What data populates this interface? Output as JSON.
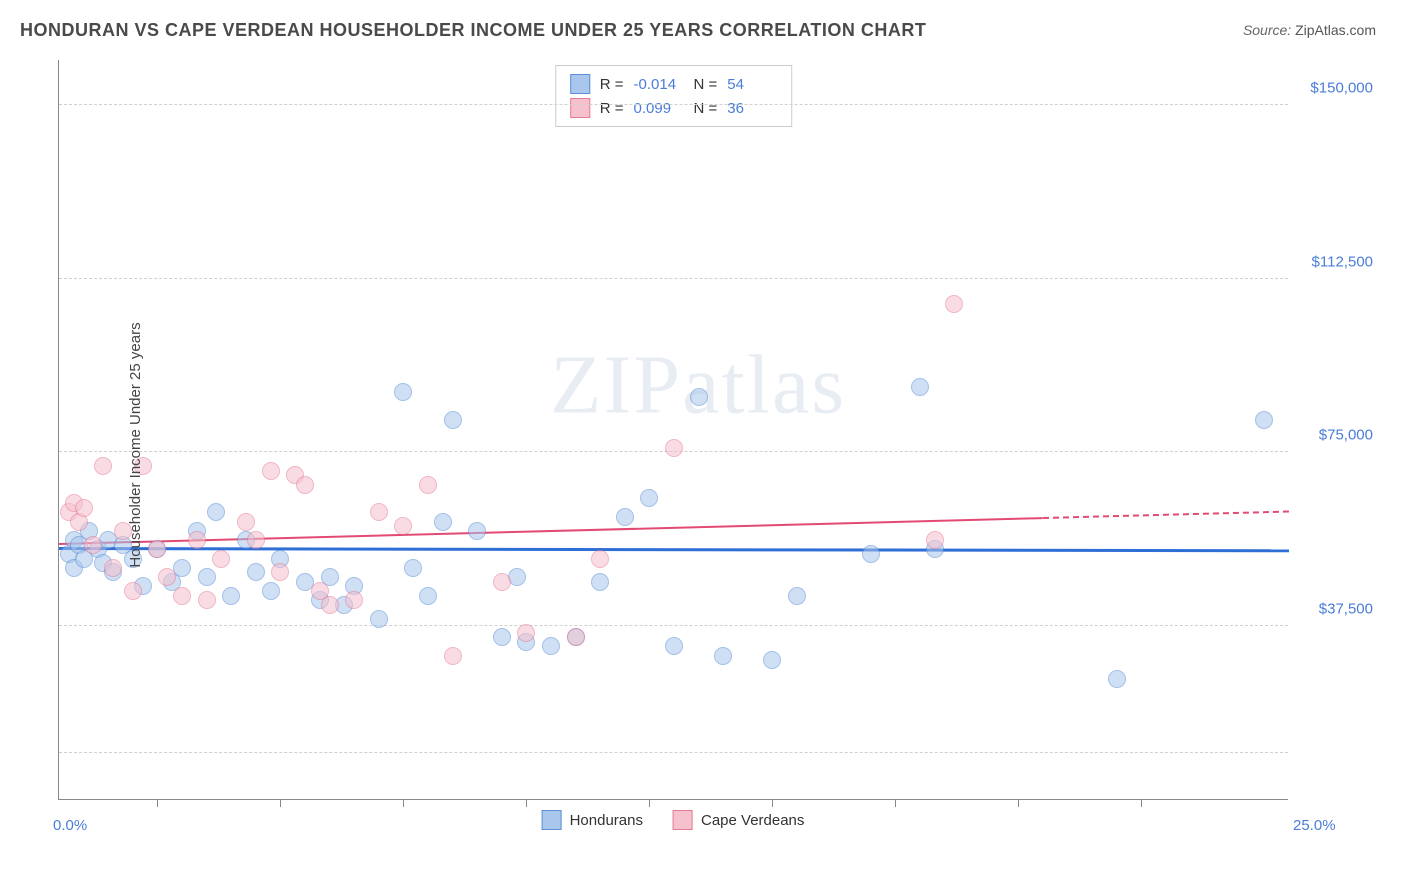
{
  "title": "HONDURAN VS CAPE VERDEAN HOUSEHOLDER INCOME UNDER 25 YEARS CORRELATION CHART",
  "source_label": "Source:",
  "source_value": "ZipAtlas.com",
  "watermark": "ZIPatlas",
  "chart": {
    "type": "scatter",
    "ylabel": "Householder Income Under 25 years",
    "xlim": [
      0,
      25
    ],
    "ylim": [
      0,
      160000
    ],
    "x_min_label": "0.0%",
    "x_max_label": "25.0%",
    "ytick_values": [
      37500,
      75000,
      112500,
      150000
    ],
    "ytick_labels": [
      "$37,500",
      "$75,000",
      "$112,500",
      "$150,000"
    ],
    "ytick_gridline_values": [
      10000,
      37500,
      75000,
      112500,
      150000
    ],
    "xtick_positions": [
      2.0,
      4.5,
      7.0,
      9.5,
      12.0,
      14.5,
      17.0,
      19.5,
      22.0
    ],
    "background_color": "#ffffff",
    "grid_color": "#d0d0d0",
    "axis_color": "#888888",
    "marker_radius": 9,
    "marker_opacity": 0.55,
    "series": [
      {
        "name": "Hondurans",
        "color_fill": "#a9c6ec",
        "color_stroke": "#5b8fd6",
        "r_value": "-0.014",
        "n_value": "54",
        "trend": {
          "x1": 0,
          "y1": 54000,
          "x2": 25,
          "y2": 53500,
          "color": "#2e6fd6",
          "width": 2.5,
          "solid_until_x": 25
        },
        "points": [
          {
            "x": 0.2,
            "y": 53000
          },
          {
            "x": 0.3,
            "y": 56000
          },
          {
            "x": 0.3,
            "y": 50000
          },
          {
            "x": 0.4,
            "y": 55000
          },
          {
            "x": 0.5,
            "y": 52000
          },
          {
            "x": 0.6,
            "y": 58000
          },
          {
            "x": 0.8,
            "y": 54000
          },
          {
            "x": 0.9,
            "y": 51000
          },
          {
            "x": 1.0,
            "y": 56000
          },
          {
            "x": 1.1,
            "y": 49000
          },
          {
            "x": 1.3,
            "y": 55000
          },
          {
            "x": 1.5,
            "y": 52000
          },
          {
            "x": 1.7,
            "y": 46000
          },
          {
            "x": 2.0,
            "y": 54000
          },
          {
            "x": 2.3,
            "y": 47000
          },
          {
            "x": 2.5,
            "y": 50000
          },
          {
            "x": 2.8,
            "y": 58000
          },
          {
            "x": 3.0,
            "y": 48000
          },
          {
            "x": 3.2,
            "y": 62000
          },
          {
            "x": 3.5,
            "y": 44000
          },
          {
            "x": 3.8,
            "y": 56000
          },
          {
            "x": 4.0,
            "y": 49000
          },
          {
            "x": 4.3,
            "y": 45000
          },
          {
            "x": 4.5,
            "y": 52000
          },
          {
            "x": 5.0,
            "y": 47000
          },
          {
            "x": 5.3,
            "y": 43000
          },
          {
            "x": 5.5,
            "y": 48000
          },
          {
            "x": 5.8,
            "y": 42000
          },
          {
            "x": 6.0,
            "y": 46000
          },
          {
            "x": 6.5,
            "y": 39000
          },
          {
            "x": 7.0,
            "y": 88000
          },
          {
            "x": 7.2,
            "y": 50000
          },
          {
            "x": 7.5,
            "y": 44000
          },
          {
            "x": 7.8,
            "y": 60000
          },
          {
            "x": 8.0,
            "y": 82000
          },
          {
            "x": 8.5,
            "y": 58000
          },
          {
            "x": 9.0,
            "y": 35000
          },
          {
            "x": 9.3,
            "y": 48000
          },
          {
            "x": 9.5,
            "y": 34000
          },
          {
            "x": 10.0,
            "y": 33000
          },
          {
            "x": 10.5,
            "y": 35000
          },
          {
            "x": 11.0,
            "y": 47000
          },
          {
            "x": 11.5,
            "y": 61000
          },
          {
            "x": 12.0,
            "y": 65000
          },
          {
            "x": 12.5,
            "y": 33000
          },
          {
            "x": 13.0,
            "y": 87000
          },
          {
            "x": 13.5,
            "y": 31000
          },
          {
            "x": 14.5,
            "y": 30000
          },
          {
            "x": 15.0,
            "y": 44000
          },
          {
            "x": 16.5,
            "y": 53000
          },
          {
            "x": 17.5,
            "y": 89000
          },
          {
            "x": 17.8,
            "y": 54000
          },
          {
            "x": 21.5,
            "y": 26000
          },
          {
            "x": 24.5,
            "y": 82000
          }
        ]
      },
      {
        "name": "Cape Verdeans",
        "color_fill": "#f5c1cd",
        "color_stroke": "#e67b97",
        "r_value": "0.099",
        "n_value": "36",
        "trend": {
          "x1": 0,
          "y1": 55000,
          "x2": 25,
          "y2": 62000,
          "color": "#e24a73",
          "width": 2,
          "solid_until_x": 20
        },
        "points": [
          {
            "x": 0.2,
            "y": 62000
          },
          {
            "x": 0.3,
            "y": 64000
          },
          {
            "x": 0.4,
            "y": 60000
          },
          {
            "x": 0.5,
            "y": 63000
          },
          {
            "x": 0.7,
            "y": 55000
          },
          {
            "x": 0.9,
            "y": 72000
          },
          {
            "x": 1.1,
            "y": 50000
          },
          {
            "x": 1.3,
            "y": 58000
          },
          {
            "x": 1.5,
            "y": 45000
          },
          {
            "x": 1.7,
            "y": 72000
          },
          {
            "x": 2.0,
            "y": 54000
          },
          {
            "x": 2.2,
            "y": 48000
          },
          {
            "x": 2.5,
            "y": 44000
          },
          {
            "x": 2.8,
            "y": 56000
          },
          {
            "x": 3.0,
            "y": 43000
          },
          {
            "x": 3.3,
            "y": 52000
          },
          {
            "x": 3.8,
            "y": 60000
          },
          {
            "x": 4.0,
            "y": 56000
          },
          {
            "x": 4.3,
            "y": 71000
          },
          {
            "x": 4.5,
            "y": 49000
          },
          {
            "x": 4.8,
            "y": 70000
          },
          {
            "x": 5.0,
            "y": 68000
          },
          {
            "x": 5.3,
            "y": 45000
          },
          {
            "x": 5.5,
            "y": 42000
          },
          {
            "x": 6.0,
            "y": 43000
          },
          {
            "x": 6.5,
            "y": 62000
          },
          {
            "x": 7.0,
            "y": 59000
          },
          {
            "x": 7.5,
            "y": 68000
          },
          {
            "x": 8.0,
            "y": 31000
          },
          {
            "x": 9.0,
            "y": 47000
          },
          {
            "x": 9.5,
            "y": 36000
          },
          {
            "x": 10.5,
            "y": 35000
          },
          {
            "x": 11.0,
            "y": 52000
          },
          {
            "x": 12.5,
            "y": 76000
          },
          {
            "x": 17.8,
            "y": 56000
          },
          {
            "x": 18.2,
            "y": 107000
          }
        ]
      }
    ],
    "legend": {
      "bottom_items": [
        "Hondurans",
        "Cape Verdeans"
      ]
    }
  }
}
